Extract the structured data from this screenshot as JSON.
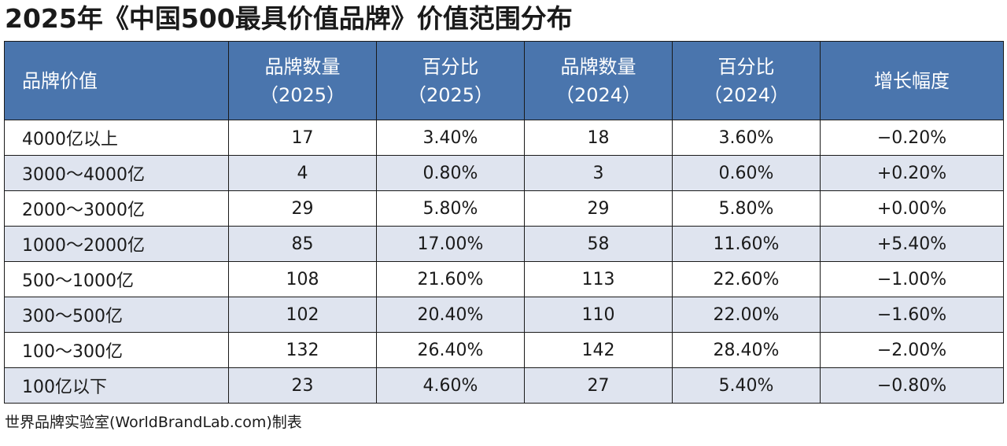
{
  "title": "2025年《中国500最具价值品牌》价值范围分布",
  "table": {
    "headers": [
      {
        "line1": "品牌价值",
        "line2": ""
      },
      {
        "line1": "品牌数量",
        "line2": "（2025）"
      },
      {
        "line1": "百分比",
        "line2": "（2025）"
      },
      {
        "line1": "品牌数量",
        "line2": "（2024）"
      },
      {
        "line1": "百分比",
        "line2": "（2024）"
      },
      {
        "line1": "增长幅度",
        "line2": ""
      }
    ],
    "rows": [
      [
        "4000亿以上",
        "17",
        "3.40%",
        "18",
        "3.60%",
        "−0.20%"
      ],
      [
        "3000～4000亿",
        "4",
        "0.80%",
        "3",
        "0.60%",
        "+0.20%"
      ],
      [
        "2000～3000亿",
        "29",
        "5.80%",
        "29",
        "5.80%",
        "+0.00%"
      ],
      [
        "1000～2000亿",
        "85",
        "17.00%",
        "58",
        "11.60%",
        "+5.40%"
      ],
      [
        "500～1000亿",
        "108",
        "21.60%",
        "113",
        "22.60%",
        "−1.00%"
      ],
      [
        "300～500亿",
        "102",
        "20.40%",
        "110",
        "22.00%",
        "−1.60%"
      ],
      [
        "100～300亿",
        "132",
        "26.40%",
        "142",
        "28.40%",
        "−2.00%"
      ],
      [
        "100亿以下",
        "23",
        "4.60%",
        "27",
        "5.40%",
        "−0.80%"
      ]
    ]
  },
  "credit": "世界品牌实验室(WorldBrandLab.com)制表",
  "colors": {
    "header_bg": "#4a75ad",
    "stripe_bg": "#dfe4ef",
    "border": "#1a1a1a"
  }
}
